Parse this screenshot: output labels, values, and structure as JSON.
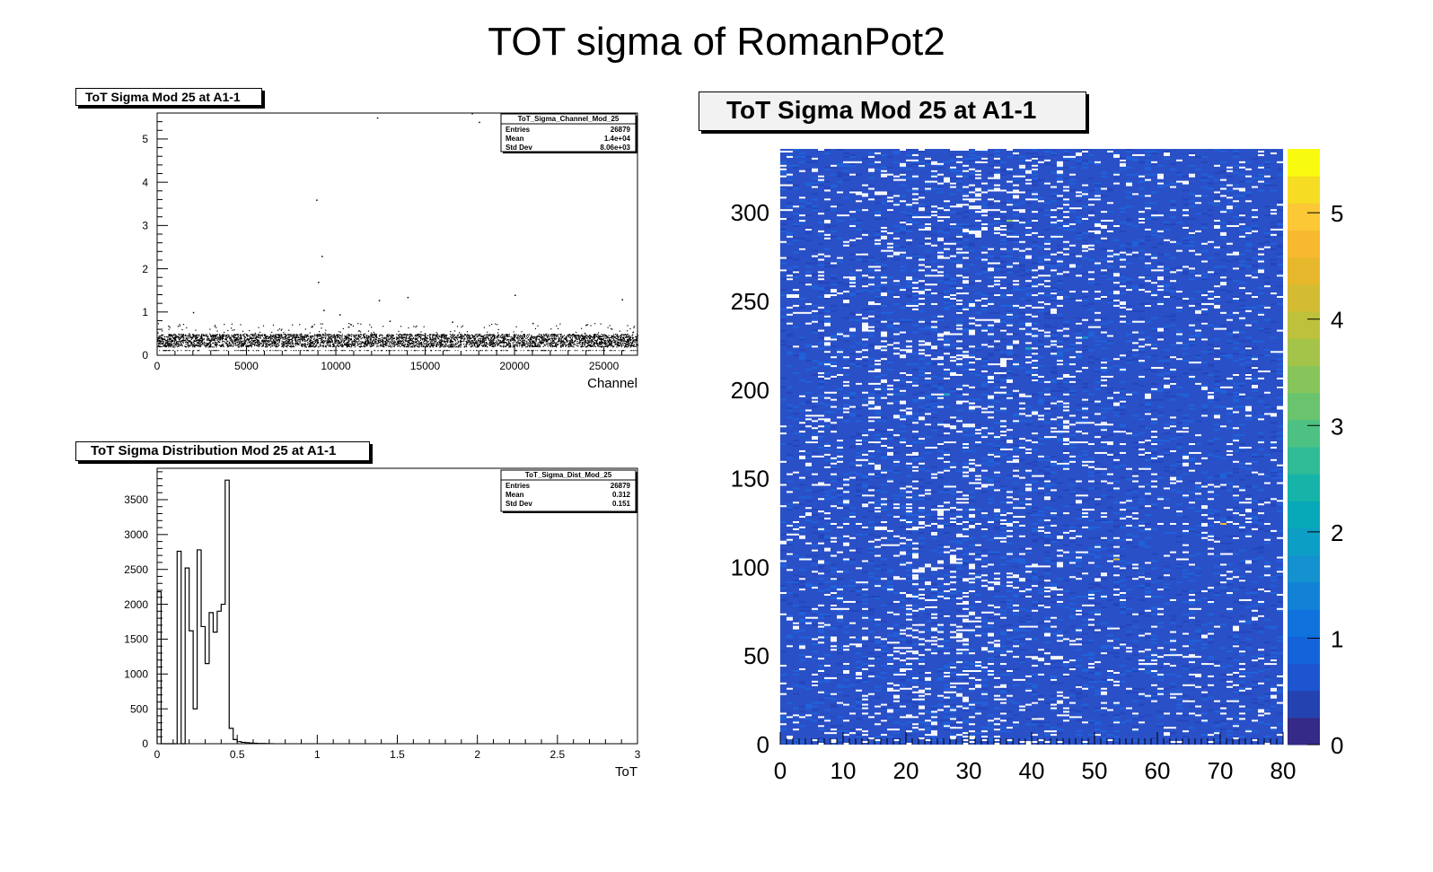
{
  "page_title": "TOT sigma of RomanPot2",
  "chart_data": [
    {
      "type": "scatter",
      "title": "ToT Sigma Mod 25 at A1-1",
      "xlabel": "Channel",
      "ylabel": "",
      "xlim": [
        0,
        26880
      ],
      "ylim": [
        0,
        5.6
      ],
      "x_ticks": [
        0,
        5000,
        10000,
        15000,
        20000,
        25000
      ],
      "y_ticks": [
        0,
        1,
        2,
        3,
        4,
        5
      ],
      "stats": {
        "name": "ToT_Sigma_Channel_Mod_25",
        "rows": [
          {
            "label": "Entries",
            "value": "26879"
          },
          {
            "label": "Mean",
            "value": "1.4e+04"
          },
          {
            "label": "Std Dev",
            "value": "8.06e+03"
          }
        ]
      },
      "band": {
        "y_min": 0.2,
        "y_max": 0.5
      },
      "outliers": [
        [
          2000,
          1.0
        ],
        [
          8900,
          3.6
        ],
        [
          9200,
          2.3
        ],
        [
          9000,
          1.7
        ],
        [
          12300,
          5.5
        ],
        [
          17600,
          5.6
        ],
        [
          18000,
          5.4
        ],
        [
          14000,
          1.35
        ],
        [
          12400,
          1.28
        ],
        [
          20000,
          1.4
        ],
        [
          26000,
          1.3
        ],
        [
          9300,
          1.05
        ],
        [
          10200,
          0.95
        ],
        [
          13000,
          0.8
        ],
        [
          16500,
          0.78
        ],
        [
          21000,
          0.75
        ]
      ]
    },
    {
      "type": "bar",
      "title": "ToT Sigma Distribution Mod 25 at A1-1",
      "xlabel": "ToT",
      "ylabel": "",
      "xlim": [
        0,
        3
      ],
      "ylim": [
        0,
        3950
      ],
      "bin_width": 0.025,
      "x_ticks": [
        0,
        0.5,
        1,
        1.5,
        2,
        2.5,
        3
      ],
      "y_ticks": [
        0,
        500,
        1000,
        1500,
        2000,
        2500,
        3000,
        3500
      ],
      "stats": {
        "name": "ToT_Sigma_Dist_Mod_25",
        "rows": [
          {
            "label": "Entries",
            "value": "26879"
          },
          {
            "label": "Mean",
            "value": "0.312"
          },
          {
            "label": "Std Dev",
            "value": "0.151"
          }
        ]
      },
      "values": [
        2180,
        0,
        0,
        0,
        0,
        2760,
        0,
        2520,
        1620,
        500,
        2780,
        1680,
        1150,
        1880,
        1600,
        1900,
        2000,
        3780,
        220,
        60,
        30,
        20,
        15,
        10,
        6,
        4,
        3,
        2,
        1
      ]
    },
    {
      "type": "heatmap",
      "title": "ToT Sigma Mod 25 at A1-1",
      "xlabel": "",
      "ylabel": "",
      "x_bins": 80,
      "y_bins": 336,
      "xlim": [
        0,
        80
      ],
      "ylim": [
        0,
        336
      ],
      "zlim": [
        0,
        5.6
      ],
      "x_ticks": [
        0,
        10,
        20,
        30,
        40,
        50,
        60,
        70,
        80
      ],
      "y_ticks": [
        0,
        50,
        100,
        150,
        200,
        250,
        300
      ],
      "z_ticks": [
        0,
        1,
        2,
        3,
        4,
        5
      ],
      "palette": [
        "#352a87",
        "#2443b0",
        "#1c55cf",
        "#1463da",
        "#0f72dd",
        "#1282d6",
        "#1491cf",
        "#0d9ec5",
        "#07a9b9",
        "#16b3a9",
        "#30bb97",
        "#4cc183",
        "#6ac46e",
        "#87c55b",
        "#a3c449",
        "#bdc13c",
        "#d3bc32",
        "#e7b72c",
        "#f7b92f",
        "#fcc836",
        "#f6dc23",
        "#f9fb0e"
      ],
      "background_color": "#2a50c8",
      "empty_color": "#ffffff"
    }
  ]
}
